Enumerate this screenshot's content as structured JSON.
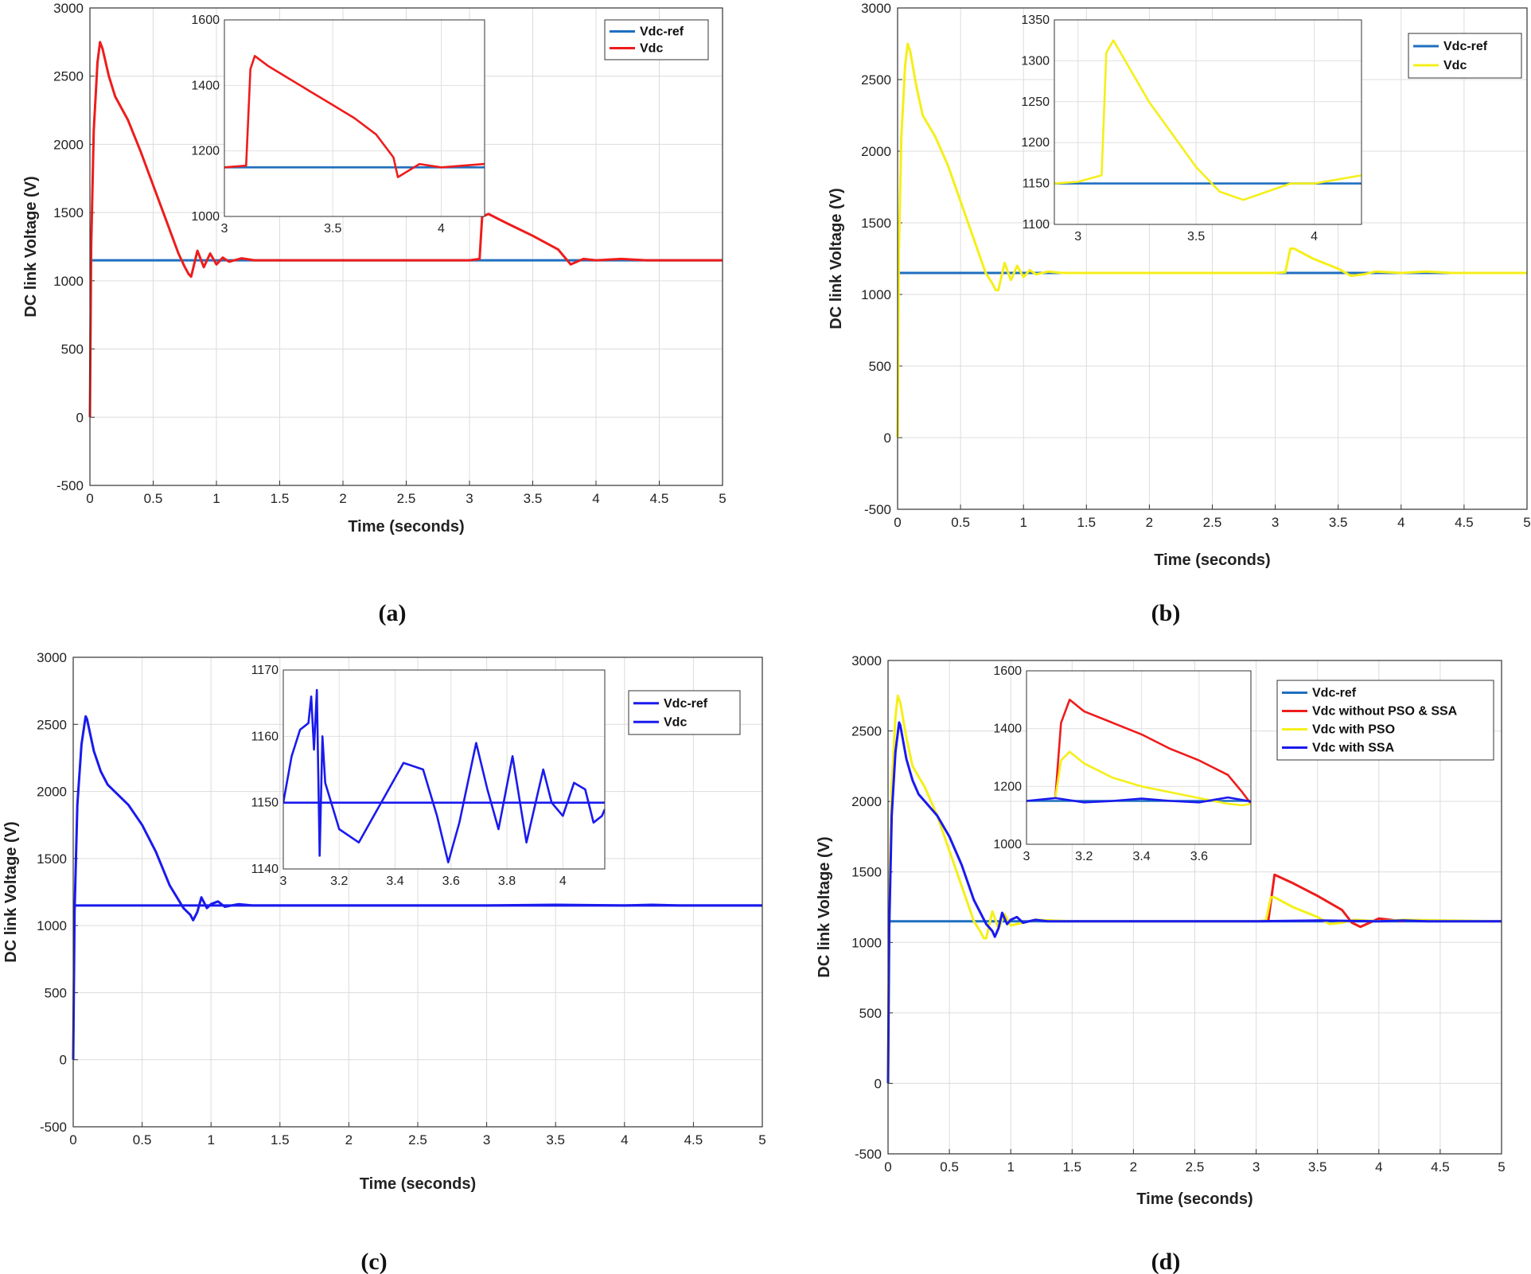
{
  "figure": {
    "captions": [
      "(a)",
      "(b)",
      "(c)",
      "(d)"
    ]
  },
  "chart_data": [
    {
      "type": "line",
      "panel": "(a)",
      "xlabel": "Time (seconds)",
      "ylabel": "DC link Voltage (V)",
      "xlim": [
        0,
        5
      ],
      "ylim": [
        -500,
        3000
      ],
      "xticks": [
        0,
        0.5,
        1,
        1.5,
        2,
        2.5,
        3,
        3.5,
        4,
        4.5,
        5
      ],
      "yticks": [
        -500,
        0,
        500,
        1000,
        1500,
        2000,
        2500,
        3000
      ],
      "grid": true,
      "legend": "top-right",
      "series": [
        {
          "name": "Vdc-ref",
          "color": "#1f6fbf",
          "x": [
            0,
            5
          ],
          "y": [
            1150,
            1150
          ]
        },
        {
          "name": "Vdc",
          "color": "#ee1c1c",
          "x": [
            0,
            0.01,
            0.03,
            0.06,
            0.08,
            0.1,
            0.15,
            0.2,
            0.3,
            0.4,
            0.5,
            0.6,
            0.7,
            0.75,
            0.78,
            0.8,
            0.85,
            0.9,
            0.95,
            1.0,
            1.05,
            1.1,
            1.2,
            1.3,
            1.5,
            2.0,
            2.5,
            3.0,
            3.08,
            3.1,
            3.15,
            3.3,
            3.5,
            3.7,
            3.8,
            3.9,
            4.0,
            4.2,
            4.4,
            4.6,
            5.0
          ],
          "y": [
            0,
            1250,
            2100,
            2600,
            2750,
            2700,
            2500,
            2350,
            2180,
            1950,
            1700,
            1450,
            1200,
            1100,
            1050,
            1030,
            1220,
            1100,
            1200,
            1120,
            1170,
            1140,
            1165,
            1150,
            1150,
            1150,
            1150,
            1150,
            1160,
            1470,
            1490,
            1420,
            1330,
            1230,
            1120,
            1160,
            1150,
            1160,
            1150,
            1150,
            1150
          ]
        }
      ],
      "inset": {
        "xlim": [
          3,
          4.2
        ],
        "ylim": [
          1000,
          1600
        ],
        "xticks": [
          3,
          3.5,
          4
        ],
        "yticks": [
          1000,
          1200,
          1400,
          1600
        ],
        "series": [
          {
            "name": "Vdc-ref",
            "x": [
              3,
              4.2
            ],
            "y": [
              1150,
              1150
            ]
          },
          {
            "name": "Vdc",
            "x": [
              3,
              3.1,
              3.12,
              3.14,
              3.2,
              3.3,
              3.4,
              3.5,
              3.6,
              3.7,
              3.78,
              3.8,
              3.85,
              3.9,
              4.0,
              4.1,
              4.2
            ],
            "y": [
              1150,
              1155,
              1450,
              1490,
              1460,
              1420,
              1380,
              1340,
              1300,
              1250,
              1180,
              1120,
              1140,
              1160,
              1150,
              1155,
              1160
            ]
          }
        ]
      }
    },
    {
      "type": "line",
      "panel": "(b)",
      "xlabel": "Time (seconds)",
      "ylabel": "DC link Voltage (V)",
      "xlim": [
        0,
        5
      ],
      "ylim": [
        -500,
        3000
      ],
      "xticks": [
        0,
        0.5,
        1,
        1.5,
        2,
        2.5,
        3,
        3.5,
        4,
        4.5,
        5
      ],
      "yticks": [
        -500,
        0,
        500,
        1000,
        1500,
        2000,
        2500,
        3000
      ],
      "grid": true,
      "legend": "top-right",
      "series": [
        {
          "name": "Vdc-ref",
          "color": "#1f6fbf",
          "x": [
            0,
            5
          ],
          "y": [
            1150,
            1150
          ]
        },
        {
          "name": "Vdc",
          "color": "#f5ef1a",
          "x": [
            0,
            0.01,
            0.03,
            0.06,
            0.08,
            0.1,
            0.15,
            0.2,
            0.3,
            0.4,
            0.5,
            0.6,
            0.7,
            0.75,
            0.78,
            0.8,
            0.85,
            0.9,
            0.95,
            1.0,
            1.05,
            1.1,
            1.2,
            1.3,
            1.5,
            2.0,
            2.5,
            3.0,
            3.08,
            3.12,
            3.15,
            3.3,
            3.5,
            3.6,
            3.7,
            3.8,
            4.0,
            4.2,
            4.4,
            5.0
          ],
          "y": [
            0,
            1300,
            2100,
            2600,
            2750,
            2700,
            2450,
            2250,
            2100,
            1900,
            1650,
            1400,
            1150,
            1080,
            1030,
            1030,
            1220,
            1100,
            1200,
            1120,
            1170,
            1140,
            1160,
            1150,
            1150,
            1150,
            1150,
            1150,
            1155,
            1320,
            1320,
            1250,
            1180,
            1130,
            1140,
            1160,
            1150,
            1160,
            1150,
            1150
          ]
        }
      ],
      "inset": {
        "xlim": [
          2.9,
          4.2
        ],
        "ylim": [
          1100,
          1350
        ],
        "xticks": [
          3,
          3.5,
          4
        ],
        "yticks": [
          1100,
          1150,
          1200,
          1250,
          1300,
          1350
        ],
        "series": [
          {
            "name": "Vdc-ref",
            "x": [
              2.9,
              4.2
            ],
            "y": [
              1150,
              1150
            ]
          },
          {
            "name": "Vdc",
            "x": [
              2.9,
              3.0,
              3.1,
              3.12,
              3.15,
              3.2,
              3.3,
              3.4,
              3.5,
              3.6,
              3.7,
              3.8,
              3.9,
              4.0,
              4.1,
              4.2
            ],
            "y": [
              1150,
              1152,
              1160,
              1310,
              1325,
              1300,
              1250,
              1210,
              1170,
              1140,
              1130,
              1140,
              1150,
              1150,
              1155,
              1160
            ]
          }
        ]
      }
    },
    {
      "type": "line",
      "panel": "(c)",
      "xlabel": "Time (seconds)",
      "ylabel": "DC link Voltage (V)",
      "xlim": [
        0,
        5
      ],
      "ylim": [
        -500,
        3000
      ],
      "xticks": [
        0,
        0.5,
        1,
        1.5,
        2,
        2.5,
        3,
        3.5,
        4,
        4.5,
        5
      ],
      "yticks": [
        -500,
        0,
        500,
        1000,
        1500,
        2000,
        2500,
        3000
      ],
      "grid": true,
      "legend": "top-right",
      "series": [
        {
          "name": "Vdc-ref",
          "color": "#1a1aee",
          "x": [
            0,
            5
          ],
          "y": [
            1150,
            1150
          ]
        },
        {
          "name": "Vdc",
          "color": "#1a1aee",
          "x": [
            0,
            0.01,
            0.03,
            0.06,
            0.09,
            0.1,
            0.15,
            0.2,
            0.25,
            0.3,
            0.4,
            0.5,
            0.6,
            0.7,
            0.8,
            0.85,
            0.87,
            0.9,
            0.93,
            0.97,
            1.0,
            1.05,
            1.1,
            1.2,
            1.3,
            1.5,
            2.0,
            2.5,
            3.0,
            3.5,
            4.0,
            4.2,
            4.4,
            5.0
          ],
          "y": [
            0,
            1100,
            1900,
            2350,
            2560,
            2540,
            2300,
            2150,
            2050,
            2000,
            1900,
            1750,
            1550,
            1300,
            1130,
            1080,
            1040,
            1100,
            1210,
            1130,
            1160,
            1180,
            1140,
            1160,
            1150,
            1150,
            1150,
            1150,
            1150,
            1155,
            1150,
            1155,
            1150,
            1150
          ]
        }
      ],
      "inset": {
        "xlim": [
          3,
          4.15
        ],
        "ylim": [
          1140,
          1170
        ],
        "xticks": [
          3,
          3.2,
          3.4,
          3.6,
          3.8,
          4
        ],
        "yticks": [
          1140,
          1150,
          1160,
          1170
        ],
        "series": [
          {
            "name": "Vdc-ref",
            "x": [
              3,
              4.15
            ],
            "y": [
              1150,
              1150
            ]
          },
          {
            "name": "Vdc",
            "x": [
              3,
              3.03,
              3.06,
              3.09,
              3.1,
              3.11,
              3.12,
              3.13,
              3.14,
              3.15,
              3.2,
              3.27,
              3.35,
              3.43,
              3.5,
              3.55,
              3.59,
              3.63,
              3.69,
              3.73,
              3.77,
              3.82,
              3.87,
              3.93,
              3.96,
              4.0,
              4.04,
              4.08,
              4.11,
              4.14,
              4.15
            ],
            "y": [
              1150,
              1157,
              1161,
              1162,
              1166,
              1158,
              1167,
              1142,
              1160,
              1153,
              1146,
              1144,
              1150,
              1156,
              1155,
              1148,
              1141,
              1147,
              1159,
              1152,
              1146,
              1157,
              1144,
              1155,
              1150,
              1148,
              1153,
              1152,
              1147,
              1148,
              1149
            ]
          }
        ]
      }
    },
    {
      "type": "line",
      "panel": "(d)",
      "xlabel": "Time (seconds)",
      "ylabel": "DC link Voltage (V)",
      "xlim": [
        0,
        5
      ],
      "ylim": [
        -500,
        3000
      ],
      "xticks": [
        0,
        0.5,
        1,
        1.5,
        2,
        2.5,
        3,
        3.5,
        4,
        4.5,
        5
      ],
      "yticks": [
        -500,
        0,
        500,
        1000,
        1500,
        2000,
        2500,
        3000
      ],
      "grid": true,
      "legend": "top-right",
      "series": [
        {
          "name": "Vdc-ref",
          "color": "#1f6fbf",
          "x": [
            0,
            5
          ],
          "y": [
            1150,
            1150
          ]
        },
        {
          "name": "Vdc without PSO & SSA",
          "color": "#ee1c1c",
          "x": [
            3.05,
            3.1,
            3.15,
            3.3,
            3.5,
            3.7,
            3.78,
            3.85,
            4.0,
            4.2
          ],
          "y": [
            1150,
            1160,
            1480,
            1420,
            1330,
            1230,
            1140,
            1110,
            1170,
            1150
          ]
        },
        {
          "name": "Vdc with PSO",
          "color": "#f5ef1a",
          "x": [
            0,
            0.01,
            0.03,
            0.06,
            0.08,
            0.1,
            0.15,
            0.2,
            0.3,
            0.4,
            0.5,
            0.6,
            0.7,
            0.75,
            0.78,
            0.8,
            0.85,
            0.9,
            0.95,
            1.0,
            1.1,
            1.2,
            1.5,
            2.0,
            2.5,
            3.0,
            3.08,
            3.12,
            3.15,
            3.3,
            3.5,
            3.6,
            3.7,
            3.8,
            4.0,
            4.2,
            5.0
          ],
          "y": [
            0,
            1300,
            2100,
            2600,
            2750,
            2700,
            2450,
            2250,
            2100,
            1900,
            1650,
            1400,
            1150,
            1080,
            1030,
            1030,
            1220,
            1100,
            1200,
            1120,
            1140,
            1160,
            1150,
            1150,
            1150,
            1150,
            1155,
            1320,
            1320,
            1250,
            1180,
            1130,
            1140,
            1160,
            1150,
            1160,
            1150
          ]
        },
        {
          "name": "Vdc with SSA",
          "color": "#1a1aee",
          "x": [
            0,
            0.01,
            0.03,
            0.06,
            0.09,
            0.1,
            0.15,
            0.2,
            0.25,
            0.3,
            0.4,
            0.5,
            0.6,
            0.7,
            0.8,
            0.85,
            0.87,
            0.9,
            0.93,
            0.97,
            1.0,
            1.05,
            1.1,
            1.2,
            1.3,
            1.5,
            2.0,
            2.5,
            3.0,
            3.5,
            4.0,
            4.2,
            4.4,
            5.0
          ],
          "y": [
            0,
            1100,
            1900,
            2350,
            2560,
            2540,
            2300,
            2150,
            2050,
            2000,
            1900,
            1750,
            1550,
            1300,
            1130,
            1080,
            1040,
            1100,
            1210,
            1130,
            1160,
            1180,
            1140,
            1160,
            1150,
            1150,
            1150,
            1150,
            1150,
            1155,
            1150,
            1155,
            1150,
            1150
          ]
        }
      ],
      "inset": {
        "xlim": [
          3,
          3.78
        ],
        "ylim": [
          1000,
          1600
        ],
        "xticks": [
          3,
          3.2,
          3.4,
          3.6
        ],
        "yticks": [
          1000,
          1200,
          1400,
          1600
        ],
        "series": [
          {
            "name": "Vdc-ref",
            "x": [
              3,
              3.78
            ],
            "y": [
              1150,
              1150
            ]
          },
          {
            "name": "Vdc without PSO & SSA",
            "x": [
              3.1,
              3.12,
              3.15,
              3.2,
              3.3,
              3.4,
              3.5,
              3.6,
              3.7,
              3.75,
              3.78
            ],
            "y": [
              1160,
              1420,
              1500,
              1460,
              1420,
              1380,
              1330,
              1290,
              1240,
              1180,
              1140
            ]
          },
          {
            "name": "Vdc with PSO",
            "x": [
              3.1,
              3.12,
              3.15,
              3.2,
              3.3,
              3.4,
              3.5,
              3.6,
              3.7,
              3.75,
              3.78
            ],
            "y": [
              1160,
              1290,
              1320,
              1280,
              1230,
              1200,
              1180,
              1160,
              1140,
              1135,
              1140
            ]
          },
          {
            "name": "Vdc with SSA",
            "x": [
              3,
              3.1,
              3.2,
              3.3,
              3.4,
              3.5,
              3.6,
              3.7,
              3.78
            ],
            "y": [
              1150,
              1160,
              1145,
              1150,
              1158,
              1150,
              1145,
              1162,
              1148
            ]
          }
        ]
      }
    }
  ]
}
